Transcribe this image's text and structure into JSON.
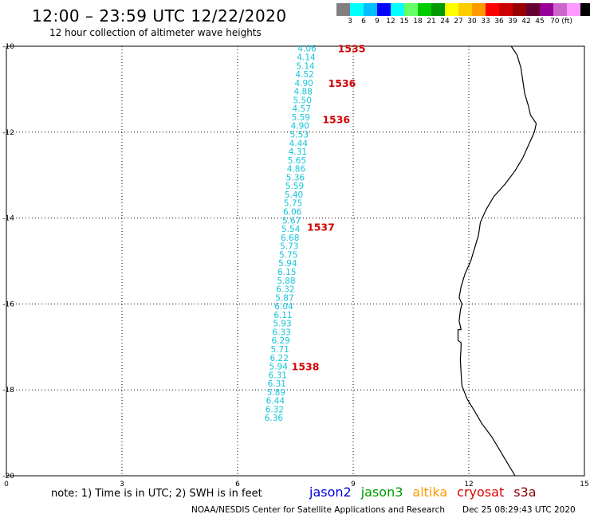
{
  "header": {
    "title": "12:00 – 23:59 UTC 12/22/2020",
    "subtitle": "12 hour collection of altimeter wave heights"
  },
  "colorbar": {
    "colors": [
      "#808080",
      "#00ffff",
      "#00bfff",
      "#0000ff",
      "#00ffff",
      "#66ff66",
      "#00cc00",
      "#009900",
      "#ffff00",
      "#ffcc00",
      "#ff9900",
      "#ff0000",
      "#cc0000",
      "#990000",
      "#660033",
      "#990099",
      "#cc66cc",
      "#ff99ff",
      "#000000"
    ],
    "labels": [
      "3",
      "6",
      "9",
      "12",
      "15",
      "18",
      "21",
      "24",
      "27",
      "30",
      "33",
      "36",
      "39",
      "42",
      "45",
      "70 (ft)"
    ]
  },
  "axes": {
    "x": {
      "min": 0,
      "max": 15,
      "ticks": [
        "0",
        "3",
        "6",
        "9",
        "12",
        "15"
      ]
    },
    "y": {
      "min": -20,
      "max": -10,
      "ticks": [
        "-10",
        "-12",
        "-14",
        "-16",
        "-18",
        "-20"
      ]
    },
    "grid": "dotted"
  },
  "map": {
    "coastline": [
      [
        13.1,
        -10.0
      ],
      [
        13.25,
        -10.2
      ],
      [
        13.35,
        -10.5
      ],
      [
        13.4,
        -10.8
      ],
      [
        13.45,
        -11.1
      ],
      [
        13.55,
        -11.4
      ],
      [
        13.6,
        -11.6
      ],
      [
        13.75,
        -11.8
      ],
      [
        13.7,
        -12.0
      ],
      [
        13.55,
        -12.3
      ],
      [
        13.4,
        -12.6
      ],
      [
        13.2,
        -12.9
      ],
      [
        12.95,
        -13.2
      ],
      [
        12.65,
        -13.5
      ],
      [
        12.45,
        -13.8
      ],
      [
        12.3,
        -14.1
      ],
      [
        12.25,
        -14.4
      ],
      [
        12.15,
        -14.7
      ],
      [
        12.05,
        -15.0
      ],
      [
        11.9,
        -15.3
      ],
      [
        11.8,
        -15.6
      ],
      [
        11.75,
        -15.85
      ],
      [
        11.82,
        -16.0
      ],
      [
        11.78,
        -16.15
      ],
      [
        11.75,
        -16.4
      ],
      [
        11.8,
        -16.6
      ],
      [
        11.72,
        -16.6
      ],
      [
        11.72,
        -16.85
      ],
      [
        11.8,
        -16.9
      ],
      [
        11.8,
        -17.0
      ],
      [
        11.78,
        -17.3
      ],
      [
        11.8,
        -17.6
      ],
      [
        11.82,
        -17.9
      ],
      [
        11.95,
        -18.2
      ],
      [
        12.15,
        -18.5
      ],
      [
        12.35,
        -18.8
      ],
      [
        12.6,
        -19.1
      ],
      [
        12.8,
        -19.4
      ],
      [
        13.0,
        -19.7
      ],
      [
        13.2,
        -20.0
      ]
    ]
  },
  "wave_heights": {
    "unit": "ft",
    "points": [
      {
        "lon": 7.8,
        "lat": -10.05,
        "value": "4.06"
      },
      {
        "lon": 7.78,
        "lat": -10.25,
        "value": "4.14"
      },
      {
        "lon": 7.76,
        "lat": -10.45,
        "value": "5.14"
      },
      {
        "lon": 7.74,
        "lat": -10.65,
        "value": "4.52"
      },
      {
        "lon": 7.72,
        "lat": -10.85,
        "value": "4.90"
      },
      {
        "lon": 7.7,
        "lat": -11.05,
        "value": "4.88"
      },
      {
        "lon": 7.68,
        "lat": -11.25,
        "value": "5.50"
      },
      {
        "lon": 7.66,
        "lat": -11.45,
        "value": "4.57"
      },
      {
        "lon": 7.64,
        "lat": -11.65,
        "value": "5.59"
      },
      {
        "lon": 7.62,
        "lat": -11.85,
        "value": "4.90"
      },
      {
        "lon": 7.6,
        "lat": -12.05,
        "value": "5.53"
      },
      {
        "lon": 7.58,
        "lat": -12.25,
        "value": "4.44"
      },
      {
        "lon": 7.56,
        "lat": -12.45,
        "value": "4.31"
      },
      {
        "lon": 7.54,
        "lat": -12.65,
        "value": "5.65"
      },
      {
        "lon": 7.52,
        "lat": -12.85,
        "value": "4.86"
      },
      {
        "lon": 7.5,
        "lat": -13.05,
        "value": "5.36"
      },
      {
        "lon": 7.48,
        "lat": -13.25,
        "value": "5.59"
      },
      {
        "lon": 7.46,
        "lat": -13.45,
        "value": "5.40"
      },
      {
        "lon": 7.44,
        "lat": -13.65,
        "value": "5.75"
      },
      {
        "lon": 7.42,
        "lat": -13.85,
        "value": "6.06"
      },
      {
        "lon": 7.4,
        "lat": -14.05,
        "value": "5.67"
      },
      {
        "lon": 7.38,
        "lat": -14.25,
        "value": "5.54"
      },
      {
        "lon": 7.36,
        "lat": -14.45,
        "value": "6.68"
      },
      {
        "lon": 7.34,
        "lat": -14.65,
        "value": "5.73"
      },
      {
        "lon": 7.32,
        "lat": -14.85,
        "value": "5.75"
      },
      {
        "lon": 7.3,
        "lat": -15.05,
        "value": "5.94"
      },
      {
        "lon": 7.28,
        "lat": -15.25,
        "value": "6.15"
      },
      {
        "lon": 7.26,
        "lat": -15.45,
        "value": "5.88"
      },
      {
        "lon": 7.24,
        "lat": -15.65,
        "value": "6.32"
      },
      {
        "lon": 7.22,
        "lat": -15.85,
        "value": "5.87"
      },
      {
        "lon": 7.2,
        "lat": -16.05,
        "value": "6.04"
      },
      {
        "lon": 7.18,
        "lat": -16.25,
        "value": "6.11"
      },
      {
        "lon": 7.16,
        "lat": -16.45,
        "value": "5.93"
      },
      {
        "lon": 7.14,
        "lat": -16.65,
        "value": "6.33"
      },
      {
        "lon": 7.12,
        "lat": -16.85,
        "value": "6.29"
      },
      {
        "lon": 7.1,
        "lat": -17.05,
        "value": "5.71"
      },
      {
        "lon": 7.08,
        "lat": -17.25,
        "value": "6.22"
      },
      {
        "lon": 7.06,
        "lat": -17.45,
        "value": "5.94"
      },
      {
        "lon": 7.04,
        "lat": -17.65,
        "value": "6.31"
      },
      {
        "lon": 7.02,
        "lat": -17.85,
        "value": "6.31"
      },
      {
        "lon": 7.0,
        "lat": -18.05,
        "value": "5.89"
      },
      {
        "lon": 6.98,
        "lat": -18.25,
        "value": "6.44"
      },
      {
        "lon": 6.96,
        "lat": -18.45,
        "value": "6.32"
      },
      {
        "lon": 6.94,
        "lat": -18.65,
        "value": "6.36"
      }
    ]
  },
  "orbits": [
    {
      "lon": 8.6,
      "lat": -10.05,
      "label": "1535"
    },
    {
      "lon": 8.35,
      "lat": -10.85,
      "label": "1536"
    },
    {
      "lon": 8.2,
      "lat": -11.7,
      "label": "1536"
    },
    {
      "lon": 7.8,
      "lat": -14.2,
      "label": "1537"
    },
    {
      "lon": 7.4,
      "lat": -17.45,
      "label": "1538"
    }
  ],
  "footer": {
    "note": "note: 1) Time is in UTC; 2) SWH is in feet",
    "satellites": [
      {
        "name": "jason2",
        "color": "#0000dd"
      },
      {
        "name": "jason3",
        "color": "#009900"
      },
      {
        "name": "altika",
        "color": "#ff9900"
      },
      {
        "name": "cryosat",
        "color": "#dd0000"
      },
      {
        "name": "s3a",
        "color": "#880000"
      }
    ],
    "credit": "NOAA/NESDIS Center for Satellite Applications and Research",
    "timestamp": "Dec 25 08:29:43 UTC 2020"
  }
}
